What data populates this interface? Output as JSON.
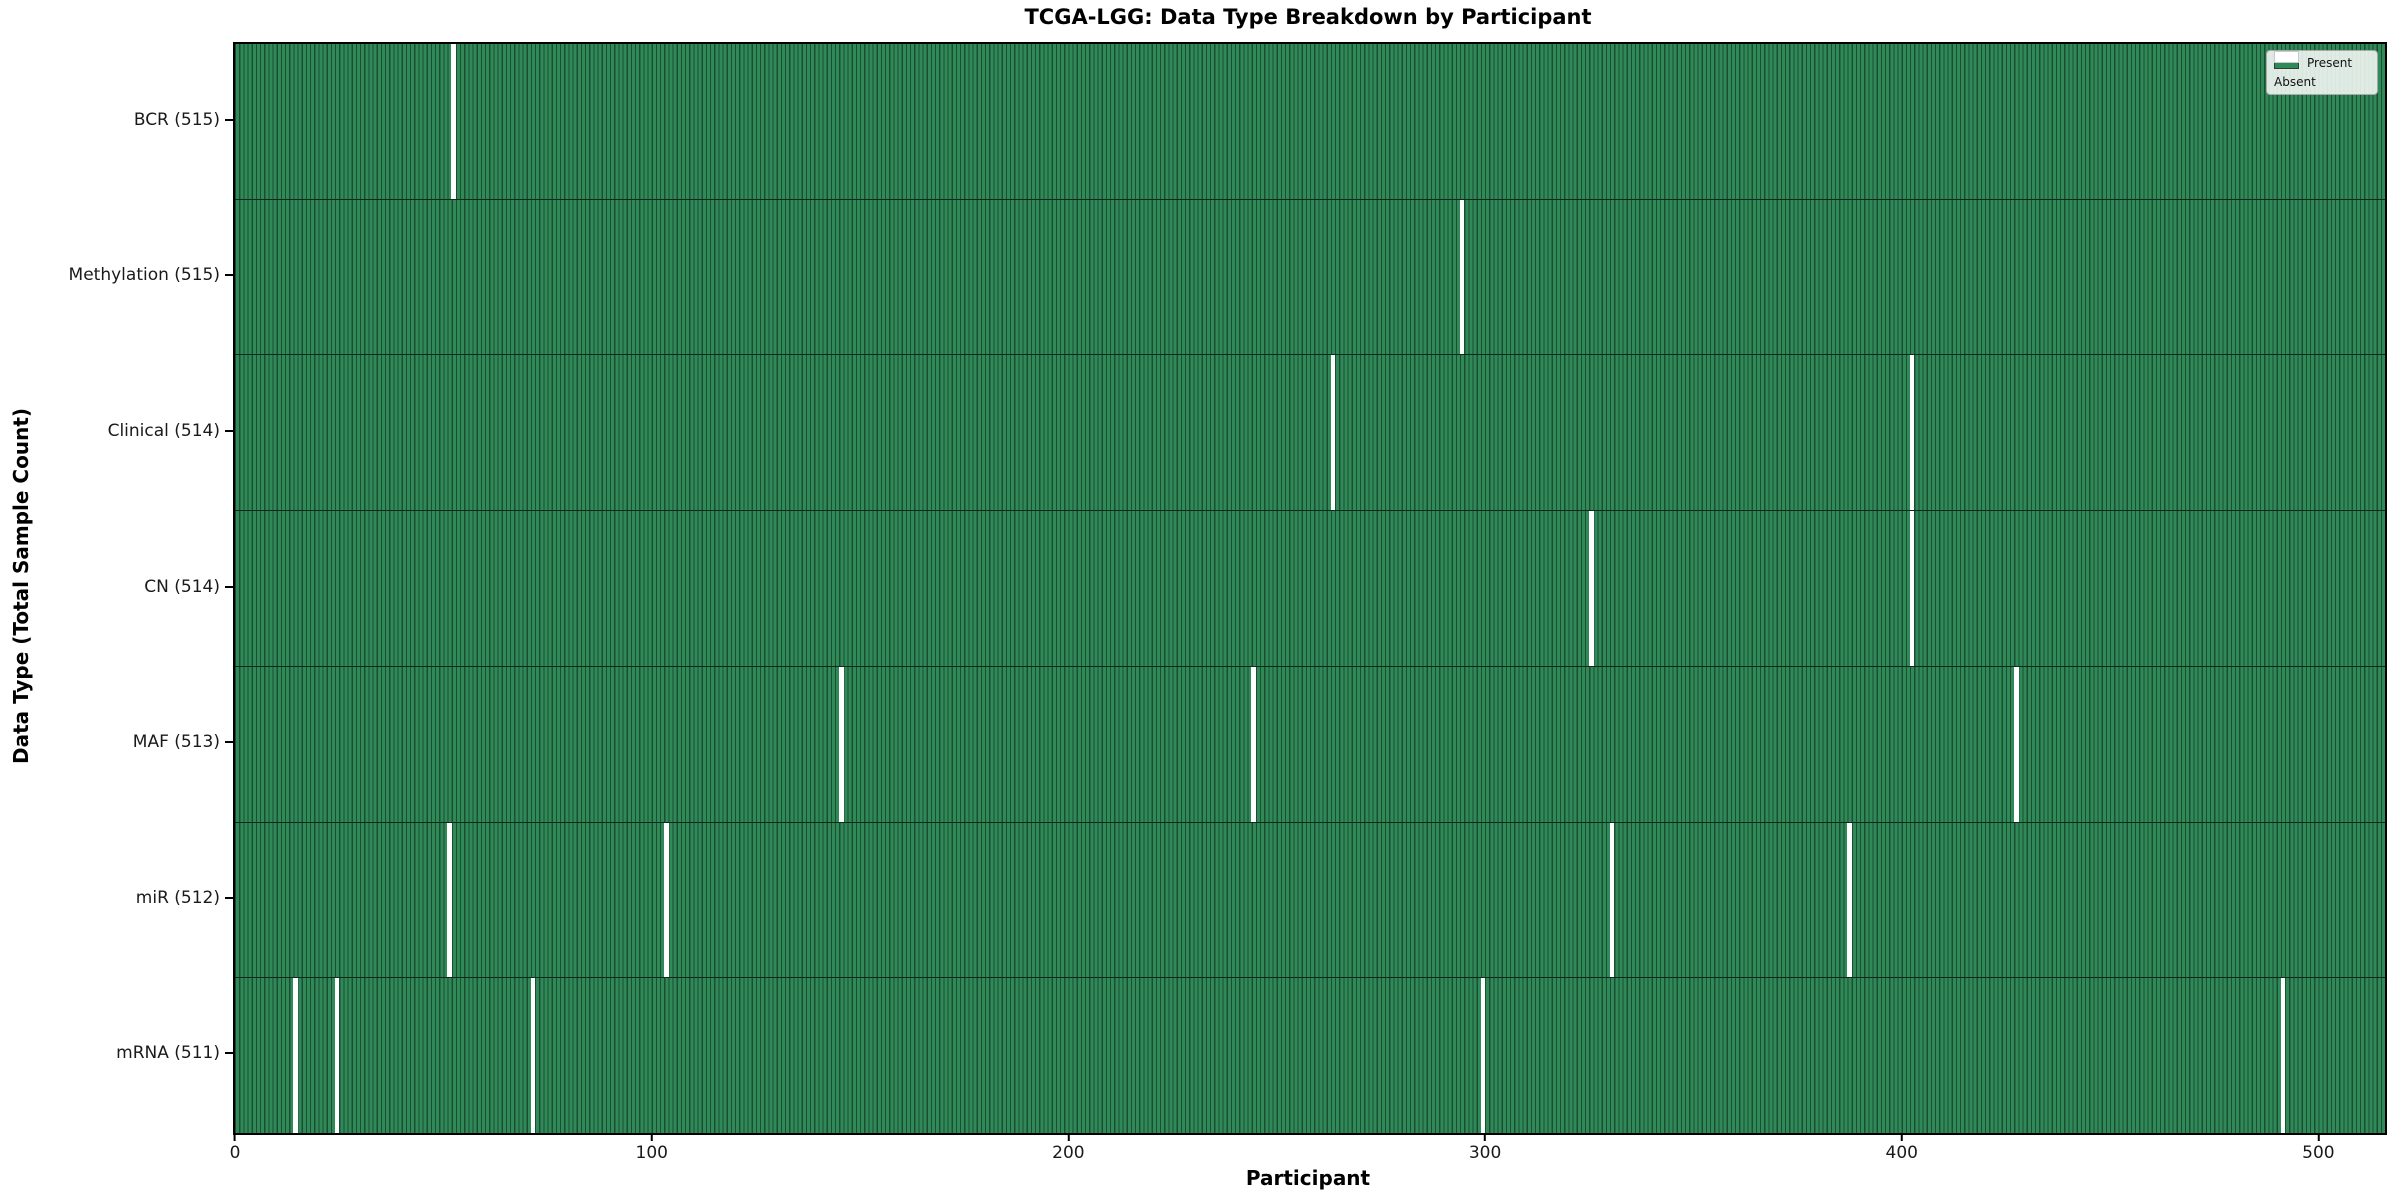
{
  "chart_data": {
    "type": "heatmap",
    "title": "TCGA-LGG: Data Type Breakdown by Participant",
    "xlabel": "Participant",
    "ylabel": "Data Type (Total Sample Count)",
    "x_ticks": [
      0,
      100,
      200,
      300,
      400,
      500
    ],
    "x_range": [
      -0.5,
      515.5
    ],
    "n_participants": 516,
    "grid": false,
    "legend_position": "upper right",
    "legend": [
      {
        "label": "Present",
        "color": "#2E8B57"
      },
      {
        "label": "Absent",
        "color": "#FFFFFF"
      }
    ],
    "colors": {
      "present": "#2E8B57",
      "absent": "#FFFFFF",
      "bar_edge": "#1B4D33",
      "spine": "#000000",
      "background": "#FFFFFF"
    },
    "rows": [
      {
        "label": "BCR (515)",
        "data_type": "BCR",
        "total_samples": 515,
        "absent_participants": [
          52
        ]
      },
      {
        "label": "Methylation (515)",
        "data_type": "Methylation",
        "total_samples": 515,
        "absent_participants": [
          294
        ]
      },
      {
        "label": "Clinical (514)",
        "data_type": "Clinical",
        "total_samples": 514,
        "absent_participants": [
          263,
          402
        ]
      },
      {
        "label": "CN (514)",
        "data_type": "CN",
        "total_samples": 514,
        "absent_participants": [
          325,
          402
        ]
      },
      {
        "label": "MAF (513)",
        "data_type": "MAF",
        "total_samples": 513,
        "absent_participants": [
          145,
          244,
          427
        ]
      },
      {
        "label": "miR (512)",
        "data_type": "miR",
        "total_samples": 512,
        "absent_participants": [
          51,
          103,
          330,
          387
        ]
      },
      {
        "label": "mRNA (511)",
        "data_type": "mRNA",
        "total_samples": 511,
        "absent_participants": [
          14,
          24,
          71,
          299,
          491
        ]
      }
    ]
  }
}
